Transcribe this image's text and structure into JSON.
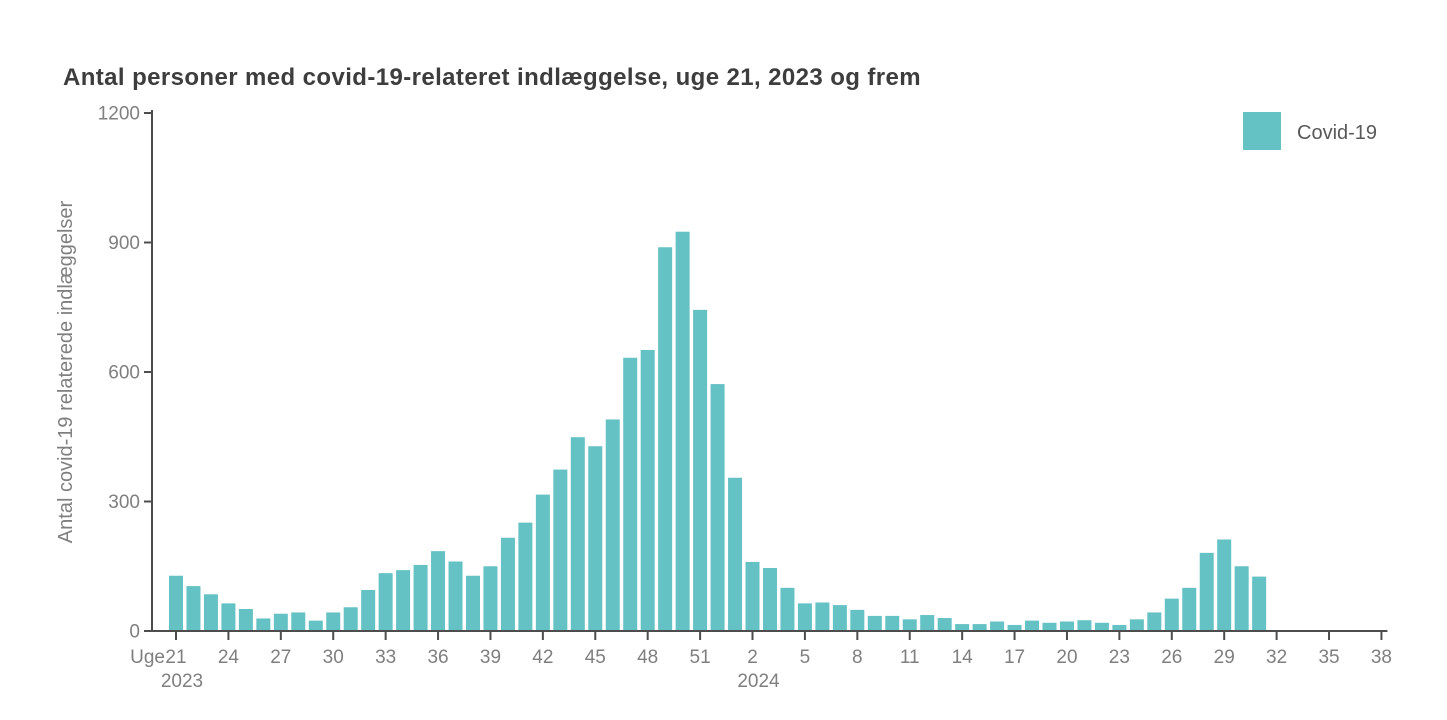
{
  "title": "Antal personer med covid-19-relateret indlæggelse, uge 21, 2023 og frem",
  "legend": {
    "items": [
      {
        "label": "Covid-19",
        "color": "#64c1c4"
      }
    ]
  },
  "colors": {
    "bar": "#64c1c4",
    "axis": "#4d4d4d",
    "tick_text": "#7f7f7f",
    "title_text": "#3d3d3d",
    "legend_text": "#595959",
    "background": "#ffffff"
  },
  "y_axis": {
    "label": "Antal covid-19 relaterede indlæggelser"
  },
  "x_axis": {
    "unit_prefix": "Uge",
    "year_left": "2023",
    "year_mid": "2024"
  },
  "chart_data": {
    "type": "bar",
    "title": "Antal personer med covid-19-relateret indlæggelse, uge 21, 2023 og frem",
    "xlabel": "Uge",
    "ylabel": "Antal covid-19 relaterede indlæggelser",
    "ylim": [
      0,
      1200
    ],
    "y_ticks": [
      0,
      300,
      600,
      900,
      1200
    ],
    "grid": false,
    "legend_position": "top-right",
    "series_name": "Covid-19",
    "bar_color": "#64c1c4",
    "data_2023": {
      "year": 2023,
      "start_week": 21,
      "end_week": 52,
      "values": [
        128,
        104,
        85,
        64,
        51,
        29,
        40,
        43,
        24,
        43,
        55,
        95,
        134,
        141,
        153,
        185,
        161,
        128,
        150,
        216,
        251,
        316,
        374,
        449,
        428,
        490,
        633,
        651,
        889,
        925,
        744,
        572
      ]
    },
    "data_2024": {
      "year": 2024,
      "start_week": 1,
      "end_week": 31,
      "values": [
        355,
        160,
        146,
        100,
        64,
        66,
        60,
        49,
        35,
        35,
        27,
        37,
        30,
        16,
        16,
        22,
        14,
        24,
        19,
        22,
        25,
        19,
        14,
        27,
        43,
        75,
        100,
        181,
        212,
        150,
        126
      ]
    },
    "x_axis": {
      "tick_every_weeks": 3,
      "tick_labels": [
        "21",
        "24",
        "27",
        "30",
        "33",
        "36",
        "39",
        "42",
        "45",
        "48",
        "51",
        "2",
        "5",
        "8",
        "11",
        "14",
        "17",
        "20",
        "23",
        "26",
        "29",
        "32",
        "35",
        "38"
      ],
      "year_markers": [
        {
          "label": "2023",
          "under_tick": "21"
        },
        {
          "label": "2024",
          "under_tick": "2"
        }
      ],
      "axis_end_year": 2024,
      "axis_end_week": 38
    }
  }
}
